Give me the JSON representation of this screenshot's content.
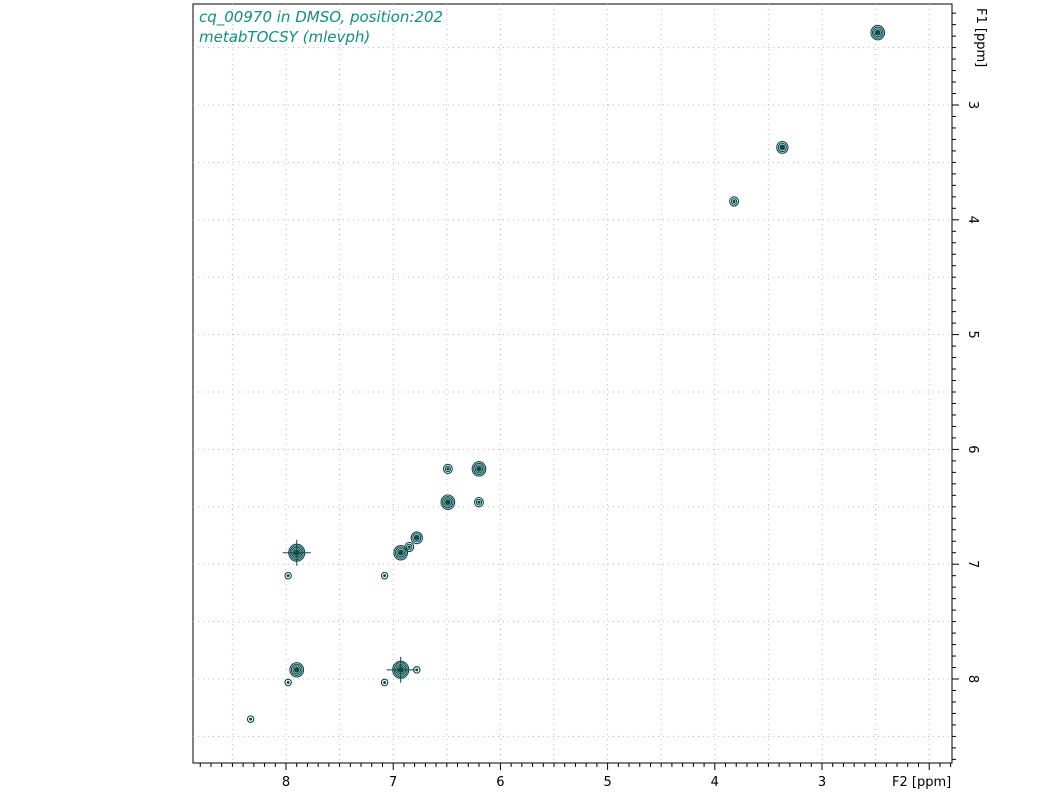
{
  "chart_data": {
    "type": "contour",
    "title_lines": [
      "cq_00970 in DMSO, position:202",
      "metabTOCSY (mlevph)"
    ],
    "xlabel": "F2 [ppm]",
    "ylabel": "F1 [ppm]",
    "x_reversed": true,
    "y_reversed": true,
    "xlim": [
      8.75,
      1.75
    ],
    "ylim": [
      2.0,
      8.65
    ],
    "x_ticks": [
      8,
      7,
      6,
      5,
      4,
      3
    ],
    "y_ticks": [
      3,
      4,
      5,
      6,
      7,
      8
    ],
    "grid": true,
    "colors": {
      "contour": "#0b4a4a",
      "title": "#0f8f80",
      "grid": "#b8b8b8",
      "frame": "#000000"
    },
    "peaks": [
      {
        "x": 2.48,
        "y": 2.37,
        "intensity": 4,
        "kind": "diagonal"
      },
      {
        "x": 3.37,
        "y": 3.37,
        "intensity": 3,
        "kind": "diagonal"
      },
      {
        "x": 3.82,
        "y": 3.84,
        "intensity": 2,
        "kind": "diagonal"
      },
      {
        "x": 6.2,
        "y": 6.17,
        "intensity": 4,
        "kind": "diagonal"
      },
      {
        "x": 6.49,
        "y": 6.17,
        "intensity": 2,
        "kind": "cross"
      },
      {
        "x": 6.2,
        "y": 6.46,
        "intensity": 2,
        "kind": "cross"
      },
      {
        "x": 6.49,
        "y": 6.46,
        "intensity": 4,
        "kind": "diagonal"
      },
      {
        "x": 6.78,
        "y": 6.77,
        "intensity": 3,
        "kind": "diagonal"
      },
      {
        "x": 6.85,
        "y": 6.85,
        "intensity": 2,
        "kind": "diagonal"
      },
      {
        "x": 6.93,
        "y": 6.9,
        "intensity": 4,
        "kind": "diagonal"
      },
      {
        "x": 7.9,
        "y": 6.9,
        "intensity": 5,
        "kind": "cross"
      },
      {
        "x": 7.9,
        "y": 7.92,
        "intensity": 4,
        "kind": "diagonal"
      },
      {
        "x": 6.93,
        "y": 7.92,
        "intensity": 5,
        "kind": "cross"
      },
      {
        "x": 6.78,
        "y": 7.92,
        "intensity": 1,
        "kind": "cross"
      },
      {
        "x": 7.08,
        "y": 7.1,
        "intensity": 1,
        "kind": "diagonal"
      },
      {
        "x": 7.98,
        "y": 7.1,
        "intensity": 1,
        "kind": "cross"
      },
      {
        "x": 7.08,
        "y": 8.03,
        "intensity": 1,
        "kind": "cross"
      },
      {
        "x": 7.98,
        "y": 8.03,
        "intensity": 1,
        "kind": "cross"
      },
      {
        "x": 8.33,
        "y": 8.35,
        "intensity": 1,
        "kind": "diagonal"
      }
    ]
  }
}
